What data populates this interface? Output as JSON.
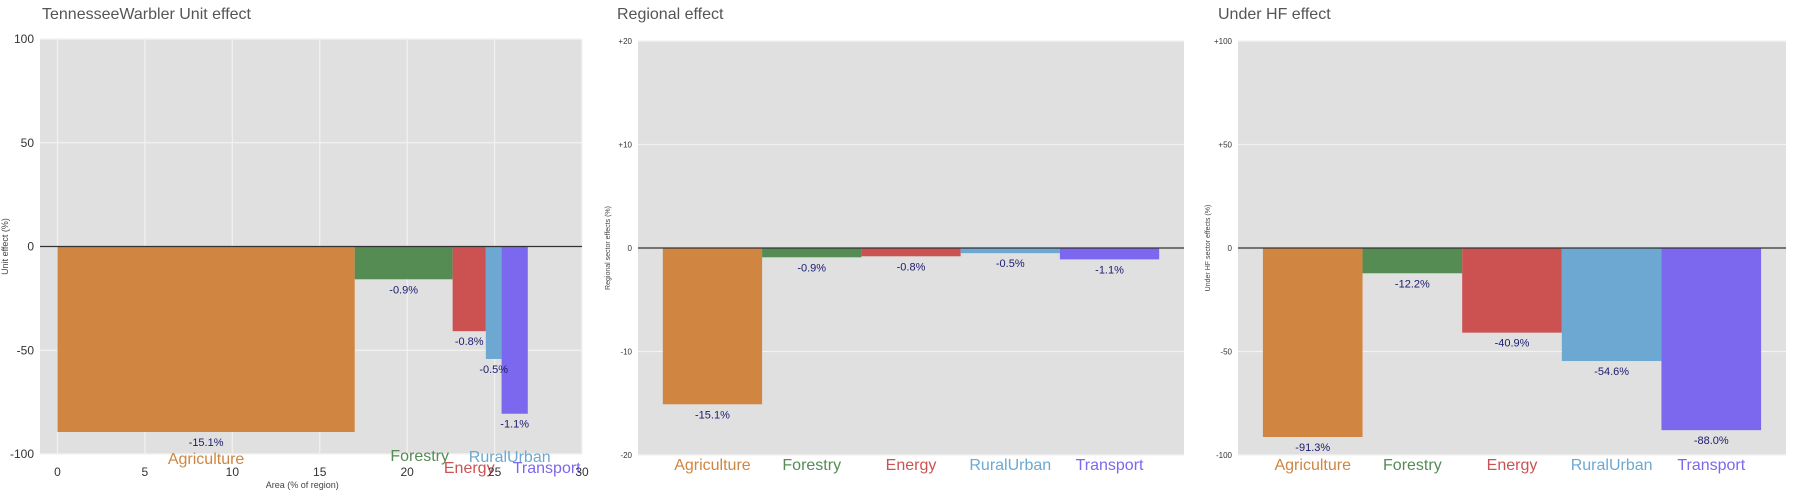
{
  "chart_data": [
    {
      "type": "bar",
      "title": "TennesseeWarbler Unit effect",
      "xlabel": "Area (% of region)",
      "ylabel": "Unit effect (%)",
      "xlim": [
        -1,
        30
      ],
      "ylim": [
        -100,
        100
      ],
      "xticks": [
        0,
        5,
        10,
        15,
        20,
        25,
        30
      ],
      "yticks": [
        {
          "value": 100,
          "label": "100"
        },
        {
          "value": 50,
          "label": "50"
        },
        {
          "value": 0,
          "label": "0"
        },
        {
          "value": -50,
          "label": "-50"
        },
        {
          "value": -100,
          "label": "-100"
        }
      ],
      "grid": true,
      "variable_width": true,
      "categories": [
        "Agriculture",
        "Forestry",
        "Energy",
        "RuralUrban",
        "Transport"
      ],
      "x_start": [
        0,
        17.0,
        22.6,
        24.5,
        25.4
      ],
      "x_end": [
        17.0,
        22.6,
        24.5,
        25.4,
        26.9
      ],
      "values": [
        -89.4,
        -15.8,
        -40.8,
        -54.2,
        -80.6
      ],
      "data_labels": [
        "-15.1%",
        "-0.9%",
        "-0.8%",
        "-0.5%",
        "-1.1%"
      ],
      "colors": [
        "#d08540",
        "#548c54",
        "#cc5252",
        "#6ca8d1",
        "#7b68ee"
      ]
    },
    {
      "type": "bar",
      "title": "Regional effect",
      "xlabel": "",
      "ylabel": "Regional sector effects (%)",
      "ylim": [
        -20,
        20
      ],
      "yticks": [
        {
          "value": 20,
          "label": "+20"
        },
        {
          "value": 10,
          "label": "+10"
        },
        {
          "value": 0,
          "label": "0"
        },
        {
          "value": -10,
          "label": "-10"
        },
        {
          "value": -20,
          "label": "-20"
        }
      ],
      "grid": true,
      "categories": [
        "Agriculture",
        "Forestry",
        "Energy",
        "RuralUrban",
        "Transport"
      ],
      "values": [
        -15.1,
        -0.9,
        -0.8,
        -0.5,
        -1.1
      ],
      "data_labels": [
        "-15.1%",
        "-0.9%",
        "-0.8%",
        "-0.5%",
        "-1.1%"
      ],
      "colors": [
        "#d08540",
        "#548c54",
        "#cc5252",
        "#6ca8d1",
        "#7b68ee"
      ]
    },
    {
      "type": "bar",
      "title": "Under HF effect",
      "xlabel": "",
      "ylabel": "Under HF sector effects (%)",
      "ylim": [
        -100,
        100
      ],
      "yticks": [
        {
          "value": 100,
          "label": "+100"
        },
        {
          "value": 50,
          "label": "+50"
        },
        {
          "value": 0,
          "label": "0"
        },
        {
          "value": -50,
          "label": "-50"
        },
        {
          "value": -100,
          "label": "-100"
        }
      ],
      "grid": true,
      "categories": [
        "Agriculture",
        "Forestry",
        "Energy",
        "RuralUrban",
        "Transport"
      ],
      "values": [
        -91.3,
        -12.2,
        -40.9,
        -54.6,
        -88.0
      ],
      "data_labels": [
        "-91.3%",
        "-12.2%",
        "-40.9%",
        "-54.6%",
        "-88.0%"
      ],
      "colors": [
        "#d08540",
        "#548c54",
        "#cc5252",
        "#6ca8d1",
        "#7b68ee"
      ]
    }
  ]
}
